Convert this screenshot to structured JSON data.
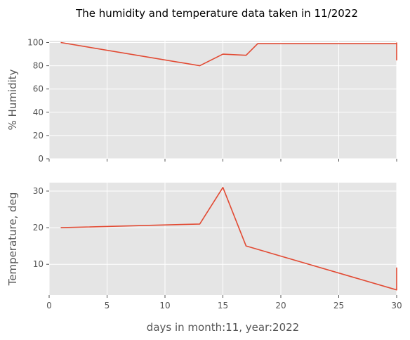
{
  "figure": {
    "title": "The humidity and temperature data taken in 11/2022"
  },
  "style": {
    "panel_background": "#e5e5e5",
    "grid_color": "#ffffff",
    "line_color": "#e24a33",
    "tick_color": "#555555",
    "text_color": "#555555"
  },
  "chart_data": [
    {
      "type": "line",
      "title": "",
      "xlabel": "",
      "ylabel": "% Humidity",
      "xlim": [
        0,
        30
      ],
      "ylim": [
        0,
        101.5
      ],
      "xticks": [
        0,
        5,
        10,
        15,
        20,
        25,
        30
      ],
      "xtick_labels_visible": false,
      "yticks": [
        0,
        20,
        40,
        60,
        80,
        100
      ],
      "grid": true,
      "series": [
        {
          "x": [
            1,
            13,
            15,
            17,
            18,
            30,
            30,
            30
          ],
          "y": [
            100,
            80,
            90,
            89,
            99,
            99,
            85,
            100
          ]
        }
      ]
    },
    {
      "type": "line",
      "title": "",
      "xlabel": "days in month:11, year:2022",
      "ylabel": "Temperature, deg",
      "xlim": [
        0,
        30
      ],
      "ylim": [
        1.6,
        32.3
      ],
      "xticks": [
        0,
        5,
        10,
        15,
        20,
        25,
        30
      ],
      "xtick_labels_visible": true,
      "yticks": [
        10,
        20,
        30
      ],
      "grid": true,
      "series": [
        {
          "x": [
            1,
            13,
            15,
            17,
            30,
            30,
            30
          ],
          "y": [
            20,
            21,
            31,
            15,
            3,
            9,
            3
          ]
        }
      ]
    }
  ]
}
